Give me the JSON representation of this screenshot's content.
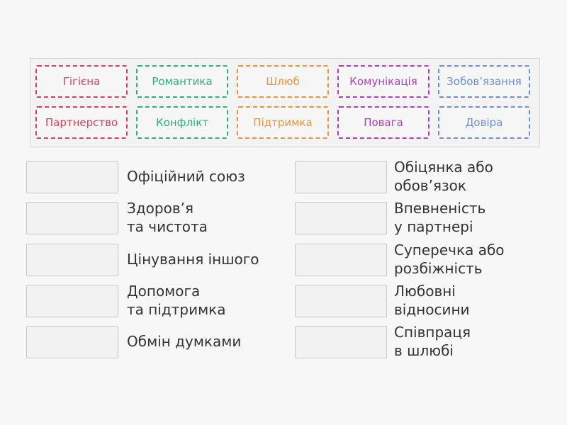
{
  "tiles": [
    {
      "label": "Гігієна",
      "color": "#d9415a"
    },
    {
      "label": "Романтика",
      "color": "#2bb37a"
    },
    {
      "label": "Шлюб",
      "color": "#f0913a"
    },
    {
      "label": "Комунікація",
      "color": "#b73bc2"
    },
    {
      "label": "Зобов’язання",
      "color": "#6b8fdb"
    },
    {
      "label": "Партнерство",
      "color": "#d9415a"
    },
    {
      "label": "Конфлікт",
      "color": "#2bb37a"
    },
    {
      "label": "Підтримка",
      "color": "#f0913a"
    },
    {
      "label": "Повага",
      "color": "#b73bc2"
    },
    {
      "label": "Довіра",
      "color": "#6b8fdb"
    }
  ],
  "left": [
    {
      "text": "Офіційний союз"
    },
    {
      "text": "Здоров’я\nта чистота"
    },
    {
      "text": "Цінування іншого"
    },
    {
      "text": "Допомога\nта підтримка"
    },
    {
      "text": "Обмін думками"
    }
  ],
  "right": [
    {
      "text": "Обіцянка або\nобов’язок"
    },
    {
      "text": "Впевненість\nу партнері"
    },
    {
      "text": "Суперечка або\nрозбіжність"
    },
    {
      "text": "Любовні\nвідносини"
    },
    {
      "text": "Співпраця\nв шлюбі"
    }
  ]
}
